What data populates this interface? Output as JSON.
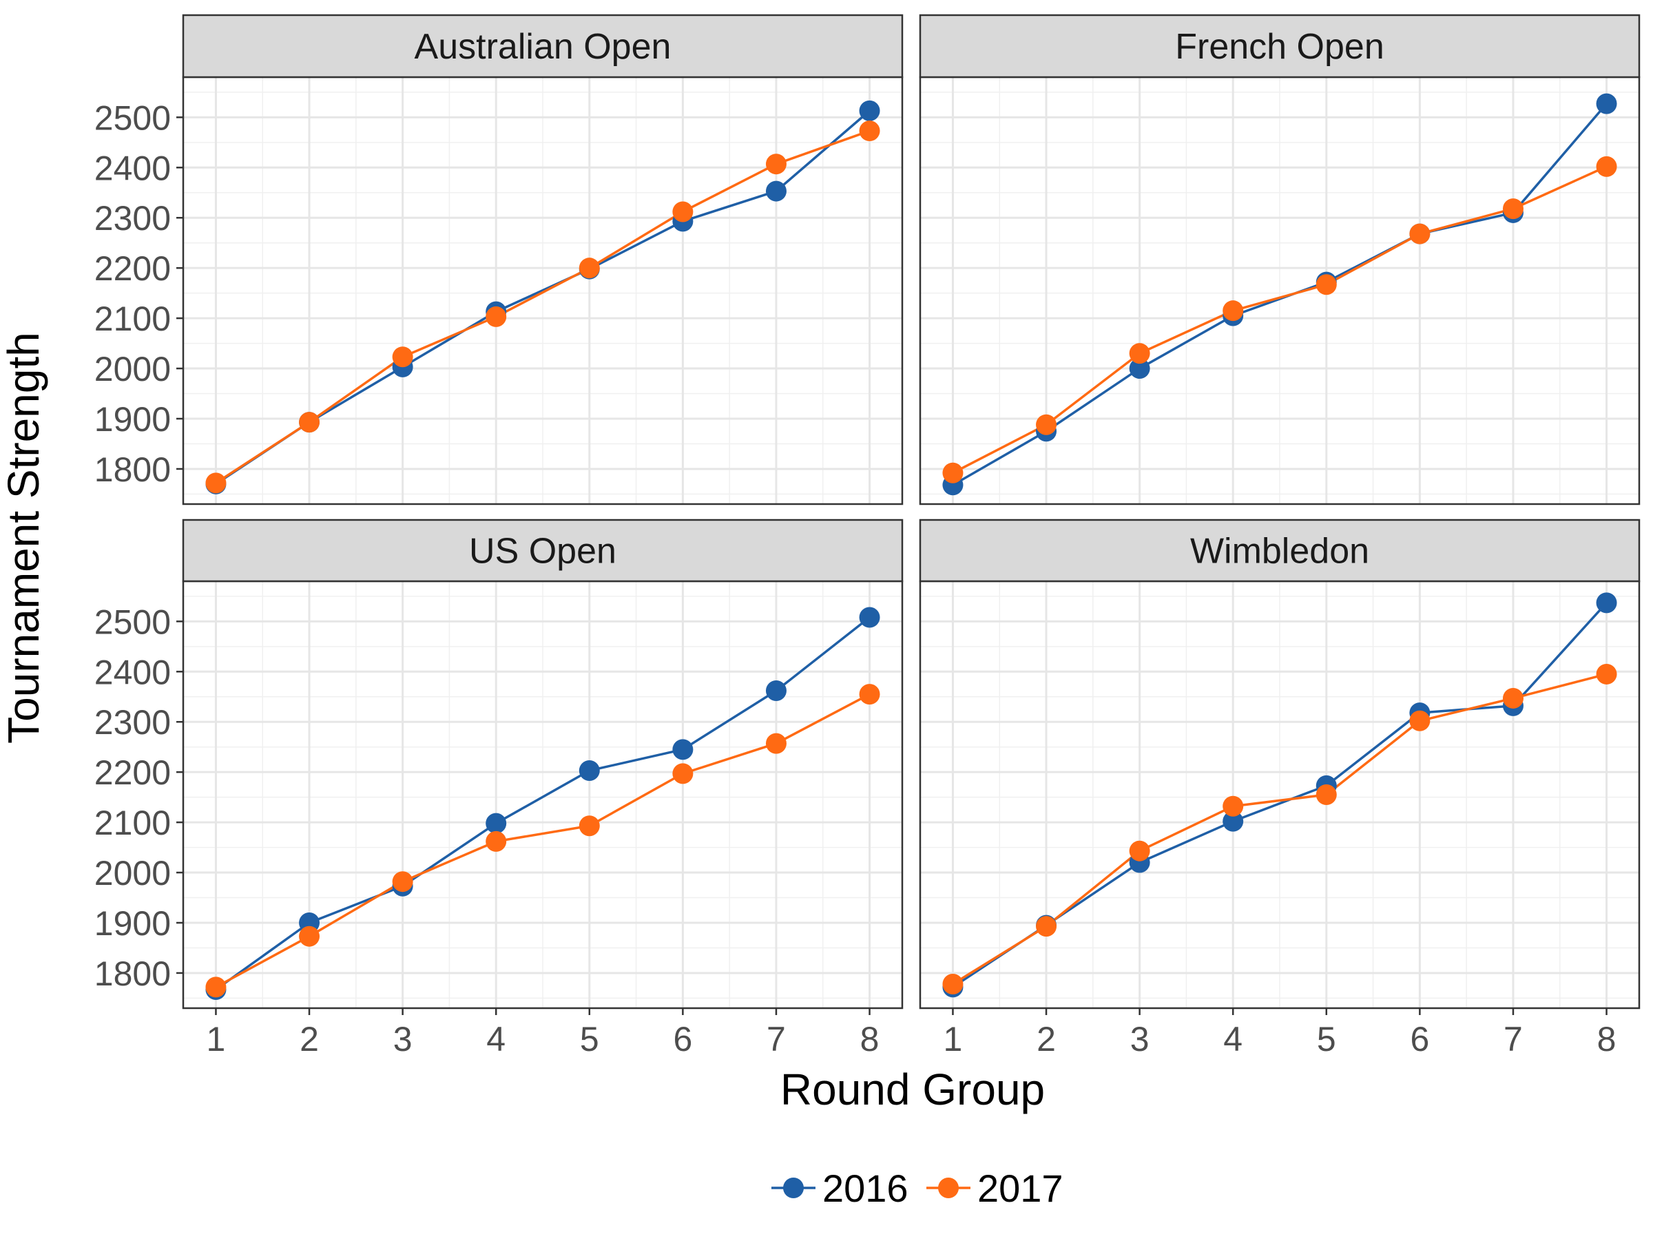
{
  "chart_data": {
    "type": "line",
    "layout": "faceted 2x2",
    "xlabel": "Round Group",
    "ylabel": "Tournament Strength",
    "x": [
      1,
      2,
      3,
      4,
      5,
      6,
      7,
      8
    ],
    "x_ticks": [
      "1",
      "2",
      "3",
      "4",
      "5",
      "6",
      "7",
      "8"
    ],
    "y_ticks": [
      "1800",
      "1900",
      "2000",
      "2100",
      "2200",
      "2300",
      "2400",
      "2500"
    ],
    "ylim": [
      1730,
      2580
    ],
    "grid": true,
    "legend_position": "bottom",
    "series_names": [
      "2016",
      "2017"
    ],
    "colors": {
      "2016": "#1f5fa6",
      "2017": "#ff6a13"
    },
    "facets": [
      {
        "title": "Australian Open",
        "series": [
          {
            "name": "2016",
            "values": [
              1770,
              1893,
              2003,
              2113,
              2198,
              2293,
              2353,
              2513
            ]
          },
          {
            "name": "2017",
            "values": [
              1772,
              1893,
              2023,
              2103,
              2200,
              2312,
              2407,
              2473
            ]
          }
        ]
      },
      {
        "title": "French Open",
        "series": [
          {
            "name": "2016",
            "values": [
              1768,
              1875,
              2000,
              2105,
              2172,
              2268,
              2310,
              2527
            ]
          },
          {
            "name": "2017",
            "values": [
              1792,
              1888,
              2030,
              2115,
              2167,
              2268,
              2318,
              2402
            ]
          }
        ]
      },
      {
        "title": "US Open",
        "series": [
          {
            "name": "2016",
            "values": [
              1767,
              1900,
              1973,
              2098,
              2203,
              2245,
              2362,
              2508
            ]
          },
          {
            "name": "2017",
            "values": [
              1772,
              1873,
              1982,
              2062,
              2093,
              2197,
              2257,
              2355
            ]
          }
        ]
      },
      {
        "title": "Wimbledon",
        "series": [
          {
            "name": "2016",
            "values": [
              1772,
              1895,
              2020,
              2102,
              2173,
              2318,
              2332,
              2537
            ]
          },
          {
            "name": "2017",
            "values": [
              1778,
              1893,
              2043,
              2132,
              2155,
              2302,
              2347,
              2395
            ]
          }
        ]
      }
    ]
  }
}
